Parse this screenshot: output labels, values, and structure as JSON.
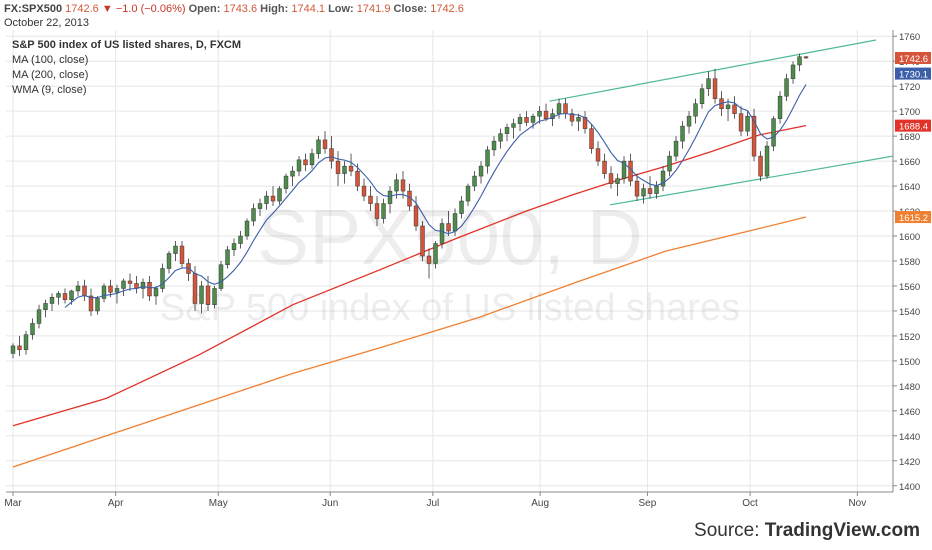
{
  "header": {
    "symbol": "FX:SPX500",
    "last": "1742.6",
    "change_arrow": "▼",
    "change": "−1.0 (−0.06%)",
    "open_label": "Open:",
    "open": "1743.6",
    "high_label": "High:",
    "high": "1744.1",
    "low_label": "Low:",
    "low": "1741.9",
    "close_label": "Close:",
    "close": "1742.6",
    "date": "October 22, 2013"
  },
  "legend": {
    "title": "S&P 500 index of US listed shares, D, FXCM",
    "ma100": "MA (100, close)",
    "ma200": "MA (200, close)",
    "wma9": "WMA (9, close)"
  },
  "watermark": {
    "line1": "SPX500, D",
    "line2": "S&P 500 index of US listed shares"
  },
  "source": {
    "prefix": "Source: ",
    "brand": "TradingView.com"
  },
  "colors": {
    "up": "#4d8c4a",
    "down": "#d6543a",
    "wick": "#333333",
    "ma100": "#e2322a",
    "ma200": "#f08030",
    "wma9": "#3b5fa8",
    "channel": "#4fb89a",
    "grid": "#e6e6e6",
    "axis": "#888888"
  },
  "chart_data": {
    "type": "candlestick",
    "y_axis": {
      "min": 1395,
      "max": 1765,
      "ticks": [
        1400,
        1420,
        1440,
        1460,
        1480,
        1500,
        1520,
        1540,
        1560,
        1580,
        1600,
        1620,
        1640,
        1660,
        1680,
        1700,
        1720,
        1740,
        1760
      ]
    },
    "x_axis": {
      "range": [
        0,
        188
      ],
      "ticks": [
        {
          "label": "Mar",
          "x": 0
        },
        {
          "label": "Apr",
          "x": 22
        },
        {
          "label": "May",
          "x": 44
        },
        {
          "label": "Jun",
          "x": 68
        },
        {
          "label": "Jul",
          "x": 90
        },
        {
          "label": "Aug",
          "x": 113
        },
        {
          "label": "Sep",
          "x": 136
        },
        {
          "label": "Oct",
          "x": 158
        },
        {
          "label": "Nov",
          "x": 181
        }
      ]
    },
    "price_labels": [
      {
        "name": "last",
        "value": 1742.6,
        "text": "1742.6",
        "bg": "#d6543a"
      },
      {
        "name": "wma9",
        "value": 1730.1,
        "text": "1730.1",
        "bg": "#3b5fa8"
      },
      {
        "name": "ma100",
        "value": 1688.4,
        "text": "1688.4",
        "bg": "#e2322a"
      },
      {
        "name": "ma200",
        "value": 1615.2,
        "text": "1615.2",
        "bg": "#f08030"
      }
    ],
    "channel_lines": [
      {
        "name": "upper",
        "x1": 115,
        "y1": 1708,
        "x2": 185,
        "y2": 1757
      },
      {
        "name": "lower",
        "x1": 128,
        "y1": 1625,
        "x2": 198,
        "y2": 1670
      }
    ],
    "ma100_points": [
      [
        0,
        1448
      ],
      [
        20,
        1470
      ],
      [
        40,
        1505
      ],
      [
        60,
        1545
      ],
      [
        80,
        1575
      ],
      [
        95,
        1598
      ],
      [
        110,
        1620
      ],
      [
        120,
        1633
      ],
      [
        130,
        1645
      ],
      [
        140,
        1656
      ],
      [
        150,
        1668
      ],
      [
        160,
        1681
      ],
      [
        170,
        1688.4
      ]
    ],
    "ma200_points": [
      [
        0,
        1415
      ],
      [
        20,
        1440
      ],
      [
        40,
        1465
      ],
      [
        60,
        1490
      ],
      [
        80,
        1512
      ],
      [
        100,
        1535
      ],
      [
        120,
        1562
      ],
      [
        140,
        1588
      ],
      [
        160,
        1606
      ],
      [
        170,
        1615.2
      ]
    ],
    "candles": [
      [
        1506,
        1514,
        1502,
        1512
      ],
      [
        1512,
        1520,
        1504,
        1509
      ],
      [
        1509,
        1524,
        1505,
        1521
      ],
      [
        1521,
        1534,
        1517,
        1530
      ],
      [
        1530,
        1545,
        1526,
        1541
      ],
      [
        1541,
        1549,
        1535,
        1546
      ],
      [
        1546,
        1554,
        1540,
        1551
      ],
      [
        1551,
        1556,
        1545,
        1554
      ],
      [
        1554,
        1558,
        1546,
        1549
      ],
      [
        1549,
        1557,
        1545,
        1556
      ],
      [
        1556,
        1564,
        1552,
        1560
      ],
      [
        1560,
        1565,
        1548,
        1552
      ],
      [
        1552,
        1558,
        1536,
        1540
      ],
      [
        1540,
        1552,
        1537,
        1550
      ],
      [
        1550,
        1562,
        1547,
        1560
      ],
      [
        1560,
        1565,
        1551,
        1555
      ],
      [
        1555,
        1561,
        1546,
        1558
      ],
      [
        1558,
        1566,
        1552,
        1564
      ],
      [
        1564,
        1570,
        1556,
        1562
      ],
      [
        1562,
        1568,
        1554,
        1558
      ],
      [
        1558,
        1566,
        1550,
        1563
      ],
      [
        1563,
        1568,
        1548,
        1552
      ],
      [
        1552,
        1560,
        1545,
        1558
      ],
      [
        1558,
        1578,
        1555,
        1574
      ],
      [
        1574,
        1588,
        1570,
        1586
      ],
      [
        1586,
        1596,
        1580,
        1592
      ],
      [
        1592,
        1596,
        1574,
        1578
      ],
      [
        1578,
        1582,
        1564,
        1570
      ],
      [
        1570,
        1576,
        1540,
        1546
      ],
      [
        1546,
        1564,
        1538,
        1560
      ],
      [
        1560,
        1568,
        1540,
        1545
      ],
      [
        1545,
        1560,
        1542,
        1558
      ],
      [
        1558,
        1580,
        1556,
        1577
      ],
      [
        1577,
        1592,
        1574,
        1589
      ],
      [
        1589,
        1598,
        1584,
        1594
      ],
      [
        1594,
        1604,
        1590,
        1600
      ],
      [
        1600,
        1614,
        1597,
        1612
      ],
      [
        1612,
        1626,
        1608,
        1622
      ],
      [
        1622,
        1630,
        1616,
        1626
      ],
      [
        1626,
        1636,
        1621,
        1632
      ],
      [
        1632,
        1640,
        1624,
        1628
      ],
      [
        1628,
        1640,
        1625,
        1638
      ],
      [
        1638,
        1650,
        1634,
        1648
      ],
      [
        1648,
        1656,
        1640,
        1652
      ],
      [
        1652,
        1664,
        1648,
        1661
      ],
      [
        1661,
        1666,
        1652,
        1657
      ],
      [
        1657,
        1670,
        1654,
        1666
      ],
      [
        1666,
        1680,
        1662,
        1677
      ],
      [
        1677,
        1684,
        1666,
        1670
      ],
      [
        1670,
        1680,
        1654,
        1660
      ],
      [
        1660,
        1668,
        1640,
        1650
      ],
      [
        1650,
        1660,
        1642,
        1656
      ],
      [
        1656,
        1666,
        1648,
        1652
      ],
      [
        1652,
        1658,
        1636,
        1640
      ],
      [
        1640,
        1646,
        1628,
        1632
      ],
      [
        1632,
        1640,
        1620,
        1626
      ],
      [
        1626,
        1632,
        1608,
        1614
      ],
      [
        1614,
        1630,
        1610,
        1626
      ],
      [
        1626,
        1640,
        1618,
        1636
      ],
      [
        1636,
        1650,
        1630,
        1645
      ],
      [
        1645,
        1652,
        1630,
        1636
      ],
      [
        1636,
        1642,
        1620,
        1624
      ],
      [
        1624,
        1632,
        1604,
        1608
      ],
      [
        1608,
        1612,
        1580,
        1584
      ],
      [
        1584,
        1590,
        1566,
        1578
      ],
      [
        1578,
        1596,
        1574,
        1594
      ],
      [
        1594,
        1614,
        1590,
        1610
      ],
      [
        1610,
        1620,
        1600,
        1604
      ],
      [
        1604,
        1622,
        1600,
        1618
      ],
      [
        1618,
        1632,
        1614,
        1628
      ],
      [
        1628,
        1642,
        1624,
        1640
      ],
      [
        1640,
        1652,
        1636,
        1648
      ],
      [
        1648,
        1660,
        1642,
        1656
      ],
      [
        1656,
        1672,
        1650,
        1669
      ],
      [
        1669,
        1680,
        1664,
        1676
      ],
      [
        1676,
        1686,
        1670,
        1682
      ],
      [
        1682,
        1690,
        1676,
        1687
      ],
      [
        1687,
        1694,
        1678,
        1690
      ],
      [
        1690,
        1698,
        1684,
        1695
      ],
      [
        1695,
        1700,
        1688,
        1691
      ],
      [
        1691,
        1698,
        1686,
        1696
      ],
      [
        1696,
        1704,
        1690,
        1700
      ],
      [
        1700,
        1706,
        1692,
        1694
      ],
      [
        1694,
        1702,
        1688,
        1698
      ],
      [
        1698,
        1710,
        1694,
        1706
      ],
      [
        1706,
        1710,
        1694,
        1698
      ],
      [
        1698,
        1702,
        1688,
        1692
      ],
      [
        1692,
        1698,
        1684,
        1695
      ],
      [
        1695,
        1700,
        1682,
        1686
      ],
      [
        1686,
        1690,
        1666,
        1670
      ],
      [
        1670,
        1676,
        1656,
        1660
      ],
      [
        1660,
        1666,
        1646,
        1650
      ],
      [
        1650,
        1656,
        1638,
        1642
      ],
      [
        1642,
        1650,
        1632,
        1646
      ],
      [
        1646,
        1664,
        1642,
        1660
      ],
      [
        1660,
        1666,
        1640,
        1644
      ],
      [
        1644,
        1650,
        1628,
        1632
      ],
      [
        1632,
        1642,
        1626,
        1638
      ],
      [
        1638,
        1648,
        1630,
        1634
      ],
      [
        1634,
        1644,
        1630,
        1640
      ],
      [
        1640,
        1656,
        1636,
        1652
      ],
      [
        1652,
        1668,
        1648,
        1664
      ],
      [
        1664,
        1680,
        1660,
        1676
      ],
      [
        1676,
        1692,
        1670,
        1688
      ],
      [
        1688,
        1700,
        1682,
        1696
      ],
      [
        1696,
        1710,
        1690,
        1706
      ],
      [
        1706,
        1722,
        1702,
        1718
      ],
      [
        1718,
        1732,
        1712,
        1726
      ],
      [
        1726,
        1734,
        1706,
        1710
      ],
      [
        1710,
        1716,
        1696,
        1702
      ],
      [
        1702,
        1710,
        1692,
        1705
      ],
      [
        1705,
        1712,
        1694,
        1698
      ],
      [
        1698,
        1704,
        1680,
        1684
      ],
      [
        1684,
        1700,
        1680,
        1696
      ],
      [
        1696,
        1702,
        1660,
        1664
      ],
      [
        1664,
        1668,
        1644,
        1648
      ],
      [
        1648,
        1676,
        1646,
        1672
      ],
      [
        1672,
        1696,
        1668,
        1694
      ],
      [
        1694,
        1716,
        1690,
        1712
      ],
      [
        1712,
        1730,
        1708,
        1726
      ],
      [
        1726,
        1740,
        1722,
        1737
      ],
      [
        1737,
        1746,
        1732,
        1743.6
      ],
      [
        1743.6,
        1744.1,
        1741.9,
        1742.6
      ]
    ]
  }
}
